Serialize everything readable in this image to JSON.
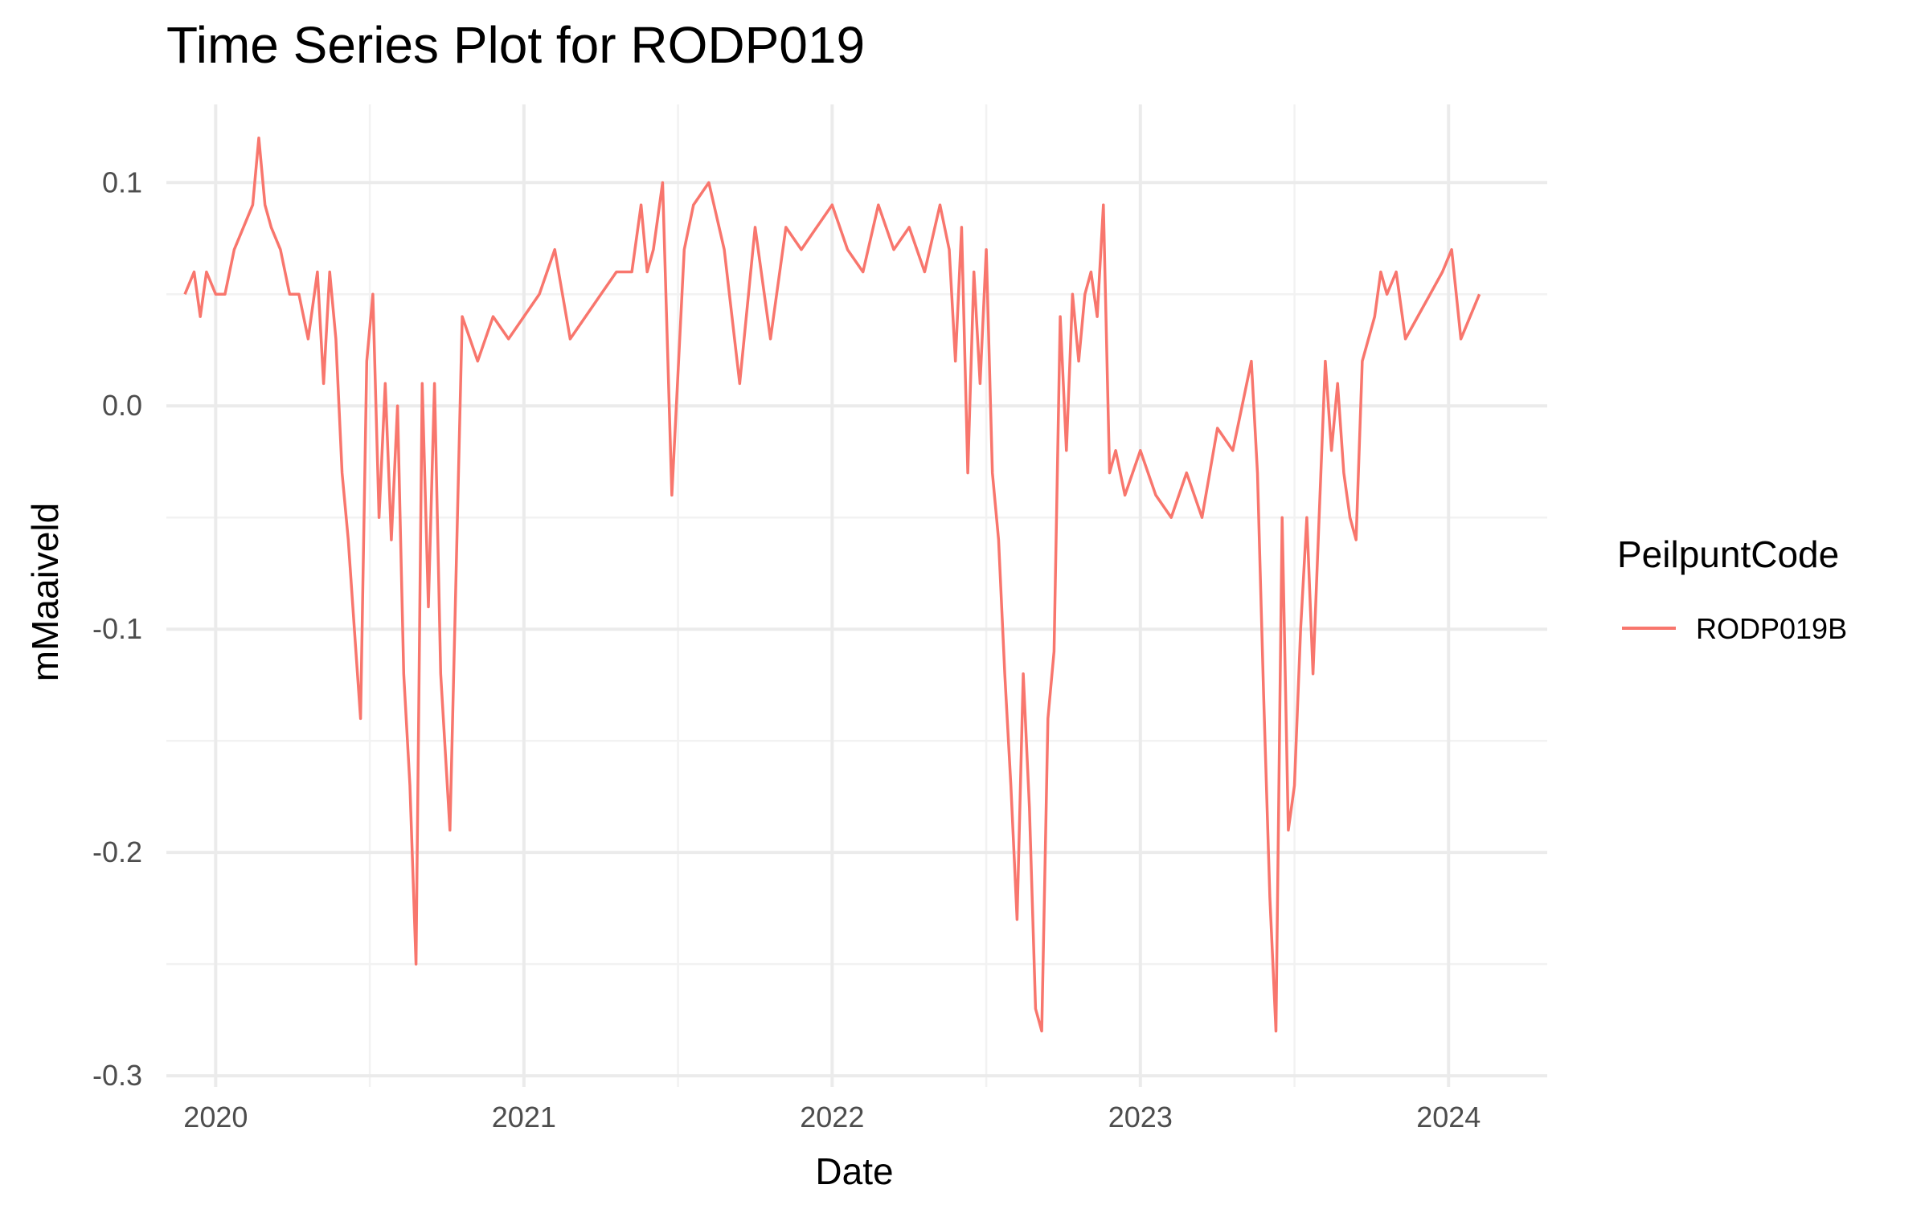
{
  "chart_data": {
    "type": "line",
    "title": "Time Series Plot for RODP019",
    "xlabel": "Date",
    "ylabel": "mMaaiveld",
    "xlim": [
      2019.84,
      2024.32
    ],
    "ylim": [
      -0.305,
      0.135
    ],
    "x_ticks": [
      2020,
      2021,
      2022,
      2023,
      2024
    ],
    "x_tick_labels": [
      "2020",
      "2021",
      "2022",
      "2023",
      "2024"
    ],
    "y_ticks": [
      -0.3,
      -0.2,
      -0.1,
      0.0,
      0.1
    ],
    "y_tick_labels": [
      "-0.3",
      "-0.2",
      "-0.1",
      "0.0",
      "0.1"
    ],
    "grid": true,
    "legend": {
      "title": "PeilpuntCode",
      "position": "right"
    },
    "series": [
      {
        "name": "RODP019B",
        "color": "#F8766D",
        "x": [
          2019.9,
          2019.93,
          2019.95,
          2019.97,
          2020.0,
          2020.03,
          2020.06,
          2020.09,
          2020.12,
          2020.14,
          2020.16,
          2020.18,
          2020.21,
          2020.24,
          2020.27,
          2020.3,
          2020.33,
          2020.35,
          2020.37,
          2020.39,
          2020.41,
          2020.43,
          2020.45,
          2020.47,
          2020.49,
          2020.51,
          2020.53,
          2020.55,
          2020.57,
          2020.59,
          2020.61,
          2020.63,
          2020.65,
          2020.67,
          2020.69,
          2020.71,
          2020.73,
          2020.76,
          2020.8,
          2020.85,
          2020.9,
          2020.95,
          2021.0,
          2021.05,
          2021.1,
          2021.15,
          2021.2,
          2021.25,
          2021.3,
          2021.35,
          2021.38,
          2021.4,
          2021.42,
          2021.45,
          2021.48,
          2021.52,
          2021.55,
          2021.6,
          2021.65,
          2021.7,
          2021.75,
          2021.8,
          2021.85,
          2021.9,
          2021.95,
          2022.0,
          2022.05,
          2022.1,
          2022.15,
          2022.2,
          2022.25,
          2022.3,
          2022.35,
          2022.38,
          2022.4,
          2022.42,
          2022.44,
          2022.46,
          2022.48,
          2022.5,
          2022.52,
          2022.54,
          2022.56,
          2022.58,
          2022.6,
          2022.62,
          2022.64,
          2022.66,
          2022.68,
          2022.7,
          2022.72,
          2022.74,
          2022.76,
          2022.78,
          2022.8,
          2022.82,
          2022.84,
          2022.86,
          2022.88,
          2022.9,
          2022.92,
          2022.95,
          2023.0,
          2023.05,
          2023.1,
          2023.15,
          2023.2,
          2023.25,
          2023.3,
          2023.33,
          2023.36,
          2023.38,
          2023.4,
          2023.42,
          2023.44,
          2023.46,
          2023.48,
          2023.5,
          2023.52,
          2023.54,
          2023.56,
          2023.58,
          2023.6,
          2023.62,
          2023.64,
          2023.66,
          2023.68,
          2023.7,
          2023.72,
          2023.74,
          2023.76,
          2023.78,
          2023.8,
          2023.83,
          2023.86,
          2023.9,
          2023.94,
          2023.98,
          2024.01,
          2024.04,
          2024.07,
          2024.1
        ],
        "y": [
          0.05,
          0.06,
          0.04,
          0.06,
          0.05,
          0.05,
          0.07,
          0.08,
          0.09,
          0.12,
          0.09,
          0.08,
          0.07,
          0.05,
          0.05,
          0.03,
          0.06,
          0.01,
          0.06,
          0.03,
          -0.03,
          -0.06,
          -0.1,
          -0.14,
          0.02,
          0.05,
          -0.05,
          0.01,
          -0.06,
          0.0,
          -0.12,
          -0.17,
          -0.25,
          0.01,
          -0.09,
          0.01,
          -0.12,
          -0.19,
          0.04,
          0.02,
          0.04,
          0.03,
          0.04,
          0.05,
          0.07,
          0.03,
          0.04,
          0.05,
          0.06,
          0.06,
          0.09,
          0.06,
          0.07,
          0.1,
          -0.04,
          0.07,
          0.09,
          0.1,
          0.07,
          0.01,
          0.08,
          0.03,
          0.08,
          0.07,
          0.08,
          0.09,
          0.07,
          0.06,
          0.09,
          0.07,
          0.08,
          0.06,
          0.09,
          0.07,
          0.02,
          0.08,
          -0.03,
          0.06,
          0.01,
          0.07,
          -0.03,
          -0.06,
          -0.12,
          -0.17,
          -0.23,
          -0.12,
          -0.18,
          -0.27,
          -0.28,
          -0.14,
          -0.11,
          0.04,
          -0.02,
          0.05,
          0.02,
          0.05,
          0.06,
          0.04,
          0.09,
          -0.03,
          -0.02,
          -0.04,
          -0.02,
          -0.04,
          -0.05,
          -0.03,
          -0.05,
          -0.01,
          -0.02,
          0.0,
          0.02,
          -0.03,
          -0.13,
          -0.22,
          -0.28,
          -0.05,
          -0.19,
          -0.17,
          -0.1,
          -0.05,
          -0.12,
          -0.05,
          0.02,
          -0.02,
          0.01,
          -0.03,
          -0.05,
          -0.06,
          0.02,
          0.03,
          0.04,
          0.06,
          0.05,
          0.06,
          0.03,
          0.04,
          0.05,
          0.06,
          0.07,
          0.03,
          0.04,
          0.05
        ]
      }
    ]
  }
}
